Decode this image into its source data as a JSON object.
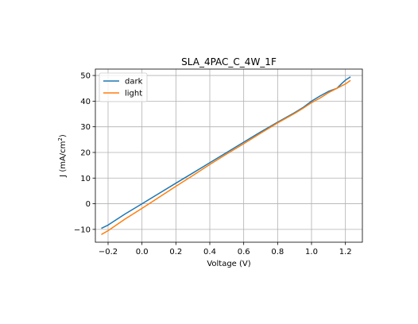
{
  "chart_data": {
    "type": "line",
    "title": "SLA_4PAC_C_4W_1F",
    "xlabel": "Voltage (V)",
    "ylabel_main": "J (mA/cm",
    "ylabel_sup": "2",
    "ylabel_close": ")",
    "xlim": [
      -0.275,
      1.3
    ],
    "ylim": [
      -15,
      52.5
    ],
    "xticks": [
      -0.2,
      0.0,
      0.2,
      0.4,
      0.6,
      0.8,
      1.0,
      1.2
    ],
    "xtick_labels": [
      "−0.2",
      "0.0",
      "0.2",
      "0.4",
      "0.6",
      "0.8",
      "1.0",
      "1.2"
    ],
    "yticks": [
      -10,
      0,
      10,
      20,
      30,
      40,
      50
    ],
    "ytick_labels": [
      "−10",
      "0",
      "10",
      "20",
      "30",
      "40",
      "50"
    ],
    "grid": true,
    "legend_position": "upper-left",
    "series": [
      {
        "name": "dark",
        "color": "#1f77b4",
        "x": [
          -0.24,
          -0.2,
          -0.1,
          0.0,
          0.1,
          0.2,
          0.3,
          0.4,
          0.5,
          0.6,
          0.7,
          0.8,
          0.9,
          0.95,
          1.0,
          1.05,
          1.1,
          1.15,
          1.18,
          1.2,
          1.23
        ],
        "y": [
          -9.6,
          -8.3,
          -4.0,
          0.0,
          4.0,
          8.0,
          12.0,
          16.0,
          20.0,
          24.0,
          28.0,
          31.8,
          35.5,
          37.5,
          40.0,
          42.0,
          43.8,
          45.0,
          47.0,
          48.2,
          49.5
        ]
      },
      {
        "name": "light",
        "color": "#ff7f0e",
        "x": [
          -0.24,
          -0.2,
          -0.1,
          0.0,
          0.1,
          0.2,
          0.3,
          0.4,
          0.5,
          0.6,
          0.7,
          0.8,
          0.9,
          0.95,
          1.0,
          1.05,
          1.1,
          1.15,
          1.2,
          1.23
        ],
        "y": [
          -12.0,
          -10.5,
          -6.0,
          -1.8,
          2.5,
          6.8,
          11.0,
          15.3,
          19.4,
          23.4,
          27.5,
          31.5,
          35.2,
          37.2,
          39.4,
          41.2,
          43.3,
          45.0,
          46.7,
          48.1
        ]
      }
    ]
  }
}
